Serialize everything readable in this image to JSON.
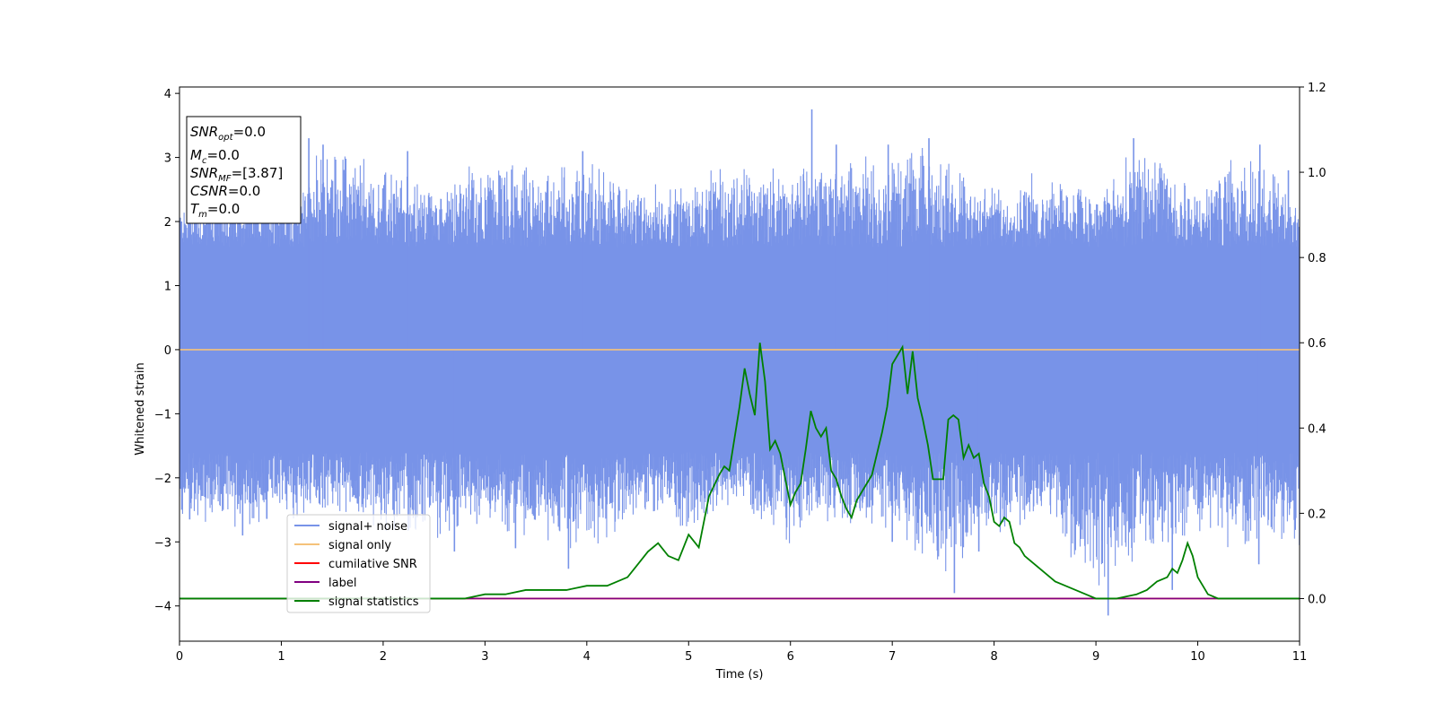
{
  "chart_data": {
    "type": "line",
    "xlabel": "Time (s)",
    "ylabel": "Whitened strain",
    "xlim": [
      0,
      11
    ],
    "ylim_left": [
      -4.55,
      4.1
    ],
    "ylim_right": [
      -0.1,
      1.2
    ],
    "x_ticks": [
      0,
      1,
      2,
      3,
      4,
      5,
      6,
      7,
      8,
      9,
      10,
      11
    ],
    "y_ticks_left": [
      4,
      3,
      2,
      1,
      0,
      -1,
      -2,
      -3,
      -4
    ],
    "y_ticks_right": [
      1.2,
      1.0,
      0.8,
      0.6,
      0.4,
      0.2,
      0.0
    ],
    "tick_labels": {
      "x": [
        "0",
        "1",
        "2",
        "3",
        "4",
        "5",
        "6",
        "7",
        "8",
        "9",
        "10",
        "11"
      ],
      "y_left": [
        "4",
        "3",
        "2",
        "1",
        "0",
        "−1",
        "−2",
        "−3",
        "−4"
      ],
      "y_right": [
        "1.2",
        "1.0",
        "0.8",
        "0.6",
        "0.4",
        "0.2",
        "0.0"
      ]
    },
    "annotation": {
      "snr_opt": {
        "main": "SNR",
        "sub": "opt",
        "value": "=0.0"
      },
      "mc": {
        "main": "M",
        "sub": "c",
        "value": "=0.0"
      },
      "snr_mf": {
        "main": "SNR",
        "sub": "MF",
        "value": "=[3.87]"
      },
      "csnr": {
        "main": "CSNR",
        "value": "=0.0"
      },
      "tm": {
        "main": "T",
        "sub": "m",
        "value": "=0.0"
      }
    },
    "legend_position": "lower-left",
    "series": [
      {
        "name": "signal+ noise",
        "axis": "left",
        "color": "#7893e8",
        "noise_envelope": {
          "x": [
            0,
            0.5,
            1.0,
            1.5,
            2.0,
            2.5,
            3.0,
            3.5,
            4.0,
            4.5,
            5.0,
            5.5,
            6.0,
            6.5,
            7.0,
            7.5,
            8.0,
            8.5,
            9.0,
            9.5,
            10.0,
            10.5,
            11.0
          ],
          "upper": [
            2.3,
            2.6,
            2.7,
            3.3,
            3.0,
            2.6,
            3.1,
            2.9,
            3.1,
            2.6,
            2.7,
            3.0,
            2.9,
            3.2,
            3.2,
            3.2,
            2.6,
            2.9,
            2.6,
            3.3,
            2.6,
            3.2,
            2.5
          ],
          "lower": [
            -2.7,
            -2.9,
            -2.8,
            -2.6,
            -2.9,
            -3.1,
            -2.7,
            -3.2,
            -3.4,
            -2.6,
            -3.0,
            -2.6,
            -3.1,
            -2.8,
            -3.0,
            -3.8,
            -3.1,
            -2.7,
            -4.1,
            -3.3,
            -2.9,
            -3.3,
            -3.0
          ],
          "band": 1.6
        },
        "peaks": [
          {
            "x": 0.02,
            "y": 2.0
          },
          {
            "x": 1.27,
            "y": 3.3
          },
          {
            "x": 1.41,
            "y": 3.2
          },
          {
            "x": 2.24,
            "y": 3.1
          },
          {
            "x": 3.96,
            "y": 3.1
          },
          {
            "x": 6.21,
            "y": 3.75
          },
          {
            "x": 6.45,
            "y": 3.2
          },
          {
            "x": 6.96,
            "y": 3.2
          },
          {
            "x": 7.36,
            "y": 3.3
          },
          {
            "x": 9.37,
            "y": 3.3
          },
          {
            "x": 10.61,
            "y": 3.2
          },
          {
            "x": 10.89,
            "y": 2.8
          },
          {
            "x": 0.1,
            "y": -2.65
          },
          {
            "x": 0.62,
            "y": -2.9
          },
          {
            "x": 3.82,
            "y": -3.42
          },
          {
            "x": 3.3,
            "y": -3.1
          },
          {
            "x": 2.7,
            "y": -3.15
          },
          {
            "x": 7.61,
            "y": -3.8
          },
          {
            "x": 7.85,
            "y": -3.15
          },
          {
            "x": 9.12,
            "y": -4.15
          },
          {
            "x": 9.75,
            "y": -3.75
          },
          {
            "x": 10.6,
            "y": -3.35
          },
          {
            "x": 11.0,
            "y": -3.05
          },
          {
            "x": 7.0,
            "y": -3.0
          }
        ]
      },
      {
        "name": "signal only",
        "axis": "left",
        "color": "#f5c27a",
        "x": [
          0,
          11
        ],
        "y": [
          0,
          0
        ]
      },
      {
        "name": "cumilative SNR",
        "axis": "right",
        "color": "#ff0000",
        "x": [
          0,
          11
        ],
        "y": [
          0,
          0
        ]
      },
      {
        "name": "label",
        "axis": "right",
        "color": "#800080",
        "x": [
          0,
          11
        ],
        "y": [
          0,
          0
        ]
      },
      {
        "name": "signal statistics",
        "axis": "right",
        "color": "#008000",
        "x": [
          0.0,
          0.3,
          0.6,
          1.0,
          1.5,
          2.0,
          2.5,
          2.8,
          3.0,
          3.2,
          3.4,
          3.6,
          3.8,
          4.0,
          4.2,
          4.3,
          4.4,
          4.5,
          4.6,
          4.7,
          4.8,
          4.9,
          5.0,
          5.1,
          5.2,
          5.3,
          5.35,
          5.4,
          5.5,
          5.55,
          5.6,
          5.65,
          5.7,
          5.75,
          5.8,
          5.85,
          5.9,
          6.0,
          6.05,
          6.1,
          6.15,
          6.2,
          6.25,
          6.3,
          6.35,
          6.4,
          6.45,
          6.5,
          6.55,
          6.6,
          6.65,
          6.7,
          6.75,
          6.8,
          6.85,
          6.9,
          6.95,
          7.0,
          7.05,
          7.1,
          7.15,
          7.2,
          7.25,
          7.3,
          7.35,
          7.4,
          7.45,
          7.5,
          7.55,
          7.6,
          7.65,
          7.7,
          7.75,
          7.8,
          7.85,
          7.9,
          7.95,
          8.0,
          8.05,
          8.1,
          8.15,
          8.2,
          8.25,
          8.3,
          8.4,
          8.5,
          8.6,
          8.7,
          8.8,
          8.9,
          9.0,
          9.2,
          9.4,
          9.5,
          9.6,
          9.7,
          9.75,
          9.8,
          9.85,
          9.9,
          9.95,
          10.0,
          10.05,
          10.1,
          10.2,
          10.4,
          10.7,
          11.0
        ],
        "y": [
          0.0,
          0.0,
          0.0,
          0.0,
          0.0,
          0.0,
          0.0,
          0.0,
          0.01,
          0.01,
          0.02,
          0.02,
          0.02,
          0.03,
          0.03,
          0.04,
          0.05,
          0.08,
          0.11,
          0.13,
          0.1,
          0.09,
          0.15,
          0.12,
          0.24,
          0.29,
          0.31,
          0.3,
          0.45,
          0.54,
          0.48,
          0.43,
          0.6,
          0.51,
          0.35,
          0.37,
          0.34,
          0.22,
          0.25,
          0.27,
          0.35,
          0.44,
          0.4,
          0.38,
          0.4,
          0.3,
          0.28,
          0.24,
          0.21,
          0.19,
          0.23,
          0.25,
          0.27,
          0.29,
          0.34,
          0.39,
          0.45,
          0.55,
          0.57,
          0.59,
          0.48,
          0.58,
          0.47,
          0.42,
          0.36,
          0.28,
          0.28,
          0.28,
          0.42,
          0.43,
          0.42,
          0.33,
          0.36,
          0.33,
          0.34,
          0.27,
          0.24,
          0.18,
          0.17,
          0.19,
          0.18,
          0.13,
          0.12,
          0.1,
          0.08,
          0.06,
          0.04,
          0.03,
          0.02,
          0.01,
          0.0,
          0.0,
          0.01,
          0.02,
          0.04,
          0.05,
          0.07,
          0.06,
          0.09,
          0.13,
          0.1,
          0.05,
          0.03,
          0.01,
          0.0,
          0.0,
          0.0,
          0.0
        ]
      }
    ]
  }
}
